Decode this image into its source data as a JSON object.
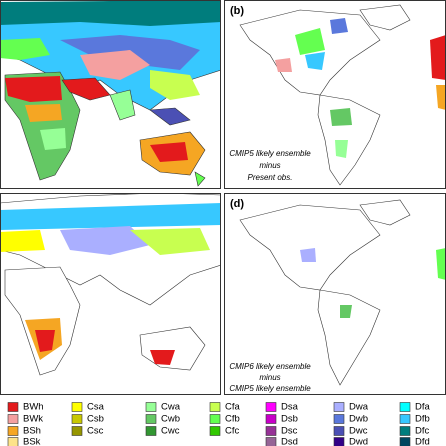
{
  "panels": [
    {
      "label": "(b)",
      "annotation": [
        "CMIP5 likely ensemble",
        "minus",
        "Present obs."
      ]
    },
    {
      "label": "(d)",
      "annotation": [
        "CMIP6 likely ensemble",
        "minus",
        "CMIP5 likely ensemble"
      ]
    }
  ],
  "legend": {
    "columns": [
      [
        {
          "label": "BWh",
          "color": "#e31a1c"
        },
        {
          "label": "BWk",
          "color": "#f4a0a0"
        },
        {
          "label": "BSh",
          "color": "#f5a623"
        },
        {
          "label": "BSk",
          "color": "#fde38a"
        }
      ],
      [
        {
          "label": "Csa",
          "color": "#ffff00"
        },
        {
          "label": "Csb",
          "color": "#c8c800"
        },
        {
          "label": "Csc",
          "color": "#969600"
        }
      ],
      [
        {
          "label": "Cwa",
          "color": "#96ff96"
        },
        {
          "label": "Cwb",
          "color": "#64c864"
        },
        {
          "label": "Cwc",
          "color": "#329632"
        }
      ],
      [
        {
          "label": "Cfa",
          "color": "#c8ff50"
        },
        {
          "label": "Cfb",
          "color": "#64ff50"
        },
        {
          "label": "Cfc",
          "color": "#32c800"
        }
      ],
      [
        {
          "label": "Dsa",
          "color": "#ff00ff"
        },
        {
          "label": "Dsb",
          "color": "#c800c8"
        },
        {
          "label": "Dsc",
          "color": "#963296"
        },
        {
          "label": "Dsd",
          "color": "#966496"
        }
      ],
      [
        {
          "label": "Dwa",
          "color": "#aaafff"
        },
        {
          "label": "Dwb",
          "color": "#5a78dc"
        },
        {
          "label": "Dwc",
          "color": "#4b50b4"
        },
        {
          "label": "Dwd",
          "color": "#320087"
        }
      ],
      [
        {
          "label": "Dfa",
          "color": "#00ffff"
        },
        {
          "label": "Dfb",
          "color": "#37c8ff"
        },
        {
          "label": "Dfc",
          "color": "#007d7d"
        },
        {
          "label": "Dfd",
          "color": "#00465f"
        }
      ]
    ]
  }
}
